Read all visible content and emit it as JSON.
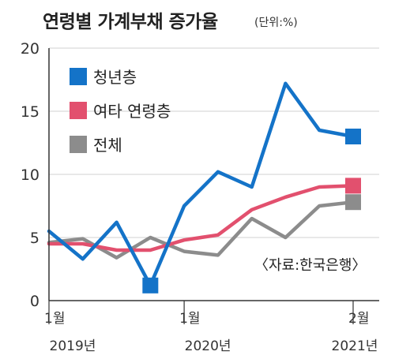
{
  "title": "연령별 가계부채 증가율",
  "unit": "(단위:%)",
  "source": "〈자료:한국은행〉",
  "colors": {
    "youth": "#1473c8",
    "other": "#e2506e",
    "total": "#8c8c8c",
    "grid": "#d9d9d9",
    "axis": "#333333"
  },
  "chart_data": {
    "type": "line",
    "ylim": [
      0,
      20
    ],
    "yticks": [
      0,
      5,
      10,
      15,
      20
    ],
    "x": [
      "2019.1Q",
      "2019.2Q",
      "2019.3Q",
      "2019.4Q",
      "2020.1Q",
      "2020.2Q",
      "2020.3Q",
      "2020.4Q",
      "2021.1Q",
      "2021.2Q"
    ],
    "xticks": [
      {
        "index": 0,
        "line1": "1월",
        "line2": "2019년"
      },
      {
        "index": 4,
        "line1": "1월",
        "line2": "2020년"
      },
      {
        "index": 9,
        "line1": "2월",
        "line2": "2021년"
      }
    ],
    "series": [
      {
        "name": "청년층",
        "color": "#1473c8",
        "values": [
          5.5,
          3.3,
          6.2,
          1.2,
          7.5,
          10.2,
          9.0,
          17.2,
          13.5,
          13.0
        ]
      },
      {
        "name": "여타 연령층",
        "color": "#e2506e",
        "values": [
          4.5,
          4.5,
          4.0,
          4.0,
          4.8,
          5.2,
          7.2,
          8.2,
          9.0,
          9.1
        ]
      },
      {
        "name": "전체",
        "color": "#8c8c8c",
        "values": [
          4.6,
          4.9,
          3.4,
          5.0,
          3.9,
          3.6,
          6.5,
          5.0,
          7.5,
          7.8
        ]
      }
    ],
    "legend": "top-left",
    "grid": true
  }
}
